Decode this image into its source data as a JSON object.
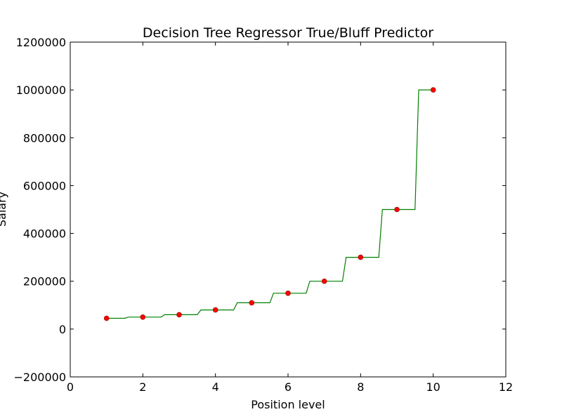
{
  "chart_data": {
    "type": "line",
    "title": "Decision Tree Regressor True/Bluff Predictor",
    "xlabel": "Position level",
    "ylabel": "Salary",
    "xlim": [
      0,
      12
    ],
    "ylim": [
      -200000,
      1200000
    ],
    "xticks": [
      0,
      2,
      4,
      6,
      8,
      10,
      12
    ],
    "yticks": [
      -200000,
      0,
      200000,
      400000,
      600000,
      800000,
      1000000,
      1200000
    ],
    "grid": false,
    "series": [
      {
        "kind": "scatter",
        "color": "#ff0000",
        "x": [
          1,
          2,
          3,
          4,
          5,
          6,
          7,
          8,
          9,
          10
        ],
        "y": [
          45000,
          50000,
          60000,
          80000,
          110000,
          150000,
          200000,
          300000,
          500000,
          1000000
        ]
      },
      {
        "kind": "step",
        "color": "#008000",
        "x": [
          1,
          1.5,
          1.6,
          2.5,
          2.6,
          3.5,
          3.6,
          4.5,
          4.6,
          5.5,
          5.6,
          6.5,
          6.6,
          7.5,
          7.6,
          8.5,
          8.6,
          9.5,
          9.6,
          10
        ],
        "y": [
          45000,
          45000,
          50000,
          50000,
          60000,
          60000,
          80000,
          80000,
          110000,
          110000,
          150000,
          150000,
          200000,
          200000,
          300000,
          300000,
          500000,
          500000,
          1000000,
          1000000
        ]
      }
    ]
  }
}
